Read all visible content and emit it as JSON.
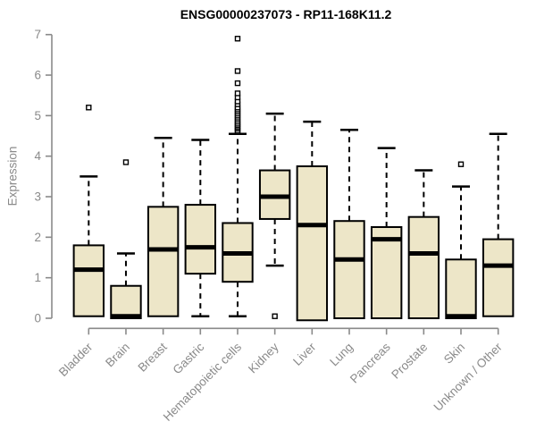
{
  "chart_data": {
    "type": "box",
    "title": "ENSG00000237073 - RP11-168K11.2",
    "ylabel": "Expression",
    "xlabel": "",
    "ylim": [
      0,
      7
    ],
    "yticks": [
      0,
      1,
      2,
      3,
      4,
      5,
      6,
      7
    ],
    "grid": false,
    "legend": "none",
    "categories": [
      "Bladder",
      "Brain",
      "Breast",
      "Gastric",
      "Hematopoietic cells",
      "Kidney",
      "Liver",
      "Lung",
      "Pancreas",
      "Prostate",
      "Skin",
      "Unknown / Other"
    ],
    "boxes": [
      {
        "category": "Bladder",
        "low": 0.05,
        "q1": 0.05,
        "median": 1.2,
        "q3": 1.8,
        "high": 3.5,
        "outliers": [
          5.2
        ]
      },
      {
        "category": "Brain",
        "low": 0.0,
        "q1": 0.0,
        "median": 0.05,
        "q3": 0.8,
        "high": 1.6,
        "outliers": [
          3.85
        ]
      },
      {
        "category": "Breast",
        "low": 0.05,
        "q1": 0.05,
        "median": 1.7,
        "q3": 2.75,
        "high": 4.45,
        "outliers": []
      },
      {
        "category": "Gastric",
        "low": 0.05,
        "q1": 1.1,
        "median": 1.75,
        "q3": 2.8,
        "high": 4.4,
        "outliers": []
      },
      {
        "category": "Hematopoietic cells",
        "low": 0.05,
        "q1": 0.9,
        "median": 1.6,
        "q3": 2.35,
        "high": 4.55,
        "outliers": [
          4.6,
          4.63,
          4.68,
          4.72,
          4.76,
          4.8,
          4.85,
          4.9,
          4.95,
          5.0,
          5.05,
          5.1,
          5.15,
          5.2,
          5.28,
          5.35,
          5.45,
          5.55,
          5.8,
          6.1,
          6.9
        ]
      },
      {
        "category": "Kidney",
        "low": 1.3,
        "q1": 2.45,
        "median": 3.0,
        "q3": 3.65,
        "high": 5.05,
        "outliers": [
          0.05
        ]
      },
      {
        "category": "Liver",
        "low": -0.05,
        "q1": -0.05,
        "median": 2.3,
        "q3": 3.75,
        "high": 4.85,
        "outliers": []
      },
      {
        "category": "Lung",
        "low": 0.0,
        "q1": 0.0,
        "median": 1.45,
        "q3": 2.4,
        "high": 4.65,
        "outliers": []
      },
      {
        "category": "Pancreas",
        "low": 0.0,
        "q1": 0.0,
        "median": 1.95,
        "q3": 2.25,
        "high": 4.2,
        "outliers": []
      },
      {
        "category": "Prostate",
        "low": 0.0,
        "q1": 0.0,
        "median": 1.6,
        "q3": 2.5,
        "high": 3.65,
        "outliers": []
      },
      {
        "category": "Skin",
        "low": 0.0,
        "q1": 0.0,
        "median": 0.05,
        "q3": 1.45,
        "high": 3.25,
        "outliers": [
          3.8
        ]
      },
      {
        "category": "Unknown / Other",
        "low": 0.05,
        "q1": 0.05,
        "median": 1.3,
        "q3": 1.95,
        "high": 4.55,
        "outliers": []
      }
    ],
    "colors": {
      "box_fill": "#EDE6C8",
      "box_border": "#000000",
      "median": "#000000",
      "whisker": "#000000",
      "axis": "#8a8a8a",
      "axis_text": "#8a8a8a",
      "title_text": "#000000",
      "background": "#ffffff"
    }
  }
}
